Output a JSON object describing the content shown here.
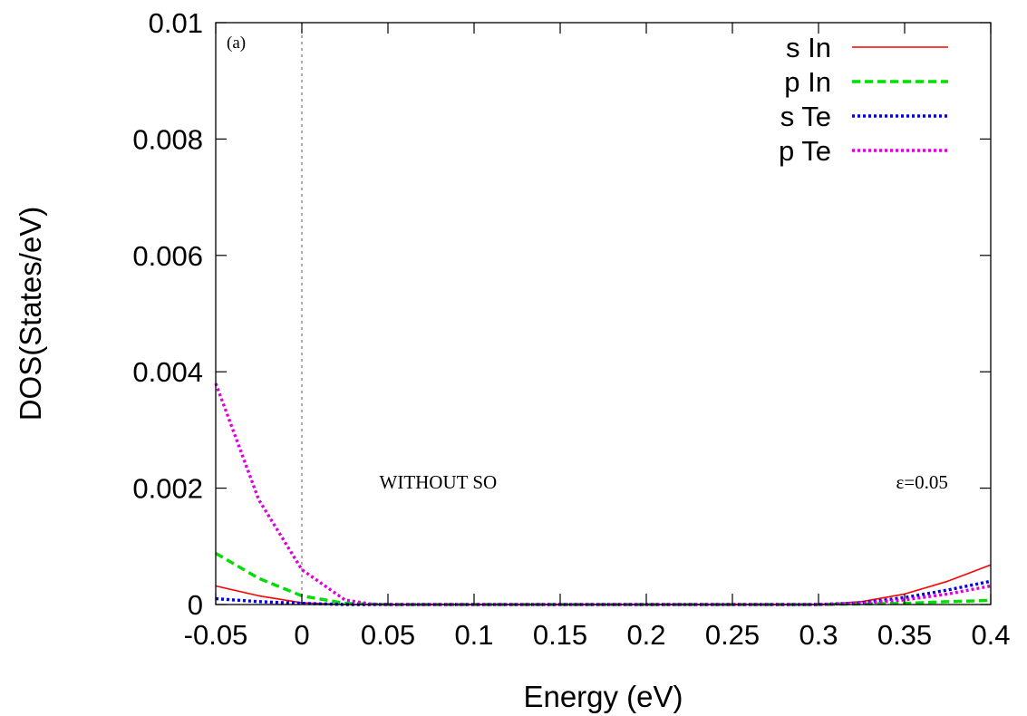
{
  "chart_data": {
    "type": "line",
    "panel_label": "(a)",
    "xlabel": "Energy (eV)",
    "ylabel": "DOS(States/eV)",
    "xlim": [
      -0.05,
      0.4
    ],
    "ylim": [
      0,
      0.01
    ],
    "x_ticks": [
      -0.05,
      0,
      0.05,
      0.1,
      0.15,
      0.2,
      0.25,
      0.3,
      0.35,
      0.4
    ],
    "x_tick_labels": [
      "-0.05",
      "0",
      "0.05",
      "0.1",
      "0.15",
      "0.2",
      "0.25",
      "0.3",
      "0.35",
      "0.4"
    ],
    "y_ticks": [
      0,
      0.002,
      0.004,
      0.006,
      0.008,
      0.01
    ],
    "y_tick_labels": [
      "0",
      "0.002",
      "0.004",
      "0.006",
      "0.008",
      "0.01"
    ],
    "grid": false,
    "legend_position": "top-right",
    "reference_line_x": 0,
    "annotations": [
      {
        "text": "WITHOUT  SO",
        "x": 0.045,
        "y": 0.0021
      },
      {
        "text": "ε=0.05",
        "x": 0.345,
        "y": 0.0021
      }
    ],
    "series": [
      {
        "name": "s In",
        "color": "#ff0000",
        "dash": "solid",
        "points": [
          [
            -0.05,
            0.00032
          ],
          [
            -0.025,
            0.00015
          ],
          [
            0,
            3e-05
          ],
          [
            0.025,
            0.0
          ],
          [
            0.05,
            0.0
          ],
          [
            0.1,
            0.0
          ],
          [
            0.15,
            0.0
          ],
          [
            0.2,
            0.0
          ],
          [
            0.25,
            0.0
          ],
          [
            0.3,
            0.0
          ],
          [
            0.325,
            5e-05
          ],
          [
            0.35,
            0.00018
          ],
          [
            0.375,
            0.0004
          ],
          [
            0.4,
            0.00068
          ]
        ]
      },
      {
        "name": "p In",
        "color": "#00dd00",
        "dash": "dashed",
        "points": [
          [
            -0.05,
            0.00088
          ],
          [
            -0.025,
            0.00045
          ],
          [
            0,
            0.00015
          ],
          [
            0.025,
            2e-05
          ],
          [
            0.05,
            0.0
          ],
          [
            0.1,
            0.0
          ],
          [
            0.15,
            0.0
          ],
          [
            0.2,
            0.0
          ],
          [
            0.25,
            0.0
          ],
          [
            0.3,
            0.0
          ],
          [
            0.35,
            2e-05
          ],
          [
            0.375,
            5e-05
          ],
          [
            0.4,
            7e-05
          ]
        ]
      },
      {
        "name": "s Te",
        "color": "#0000dd",
        "dash": "dotted",
        "points": [
          [
            -0.05,
            0.0001
          ],
          [
            -0.025,
            5e-05
          ],
          [
            0,
            2e-05
          ],
          [
            0.025,
            0.0
          ],
          [
            0.05,
            0.0
          ],
          [
            0.1,
            0.0
          ],
          [
            0.15,
            0.0
          ],
          [
            0.2,
            0.0
          ],
          [
            0.25,
            0.0
          ],
          [
            0.3,
            0.0
          ],
          [
            0.325,
            3e-05
          ],
          [
            0.35,
            0.00012
          ],
          [
            0.375,
            0.00025
          ],
          [
            0.4,
            0.0004
          ]
        ]
      },
      {
        "name": "p Te",
        "color": "#dd00dd",
        "dash": "dotted",
        "points": [
          [
            -0.05,
            0.0038
          ],
          [
            -0.025,
            0.0018
          ],
          [
            0,
            0.0006
          ],
          [
            0.025,
            8e-05
          ],
          [
            0.04,
            1e-05
          ],
          [
            0.05,
            0.0
          ],
          [
            0.1,
            0.0
          ],
          [
            0.15,
            0.0
          ],
          [
            0.2,
            0.0
          ],
          [
            0.25,
            0.0
          ],
          [
            0.3,
            0.0
          ],
          [
            0.325,
            2e-05
          ],
          [
            0.35,
            8e-05
          ],
          [
            0.375,
            0.00018
          ],
          [
            0.4,
            0.00032
          ]
        ]
      }
    ]
  }
}
